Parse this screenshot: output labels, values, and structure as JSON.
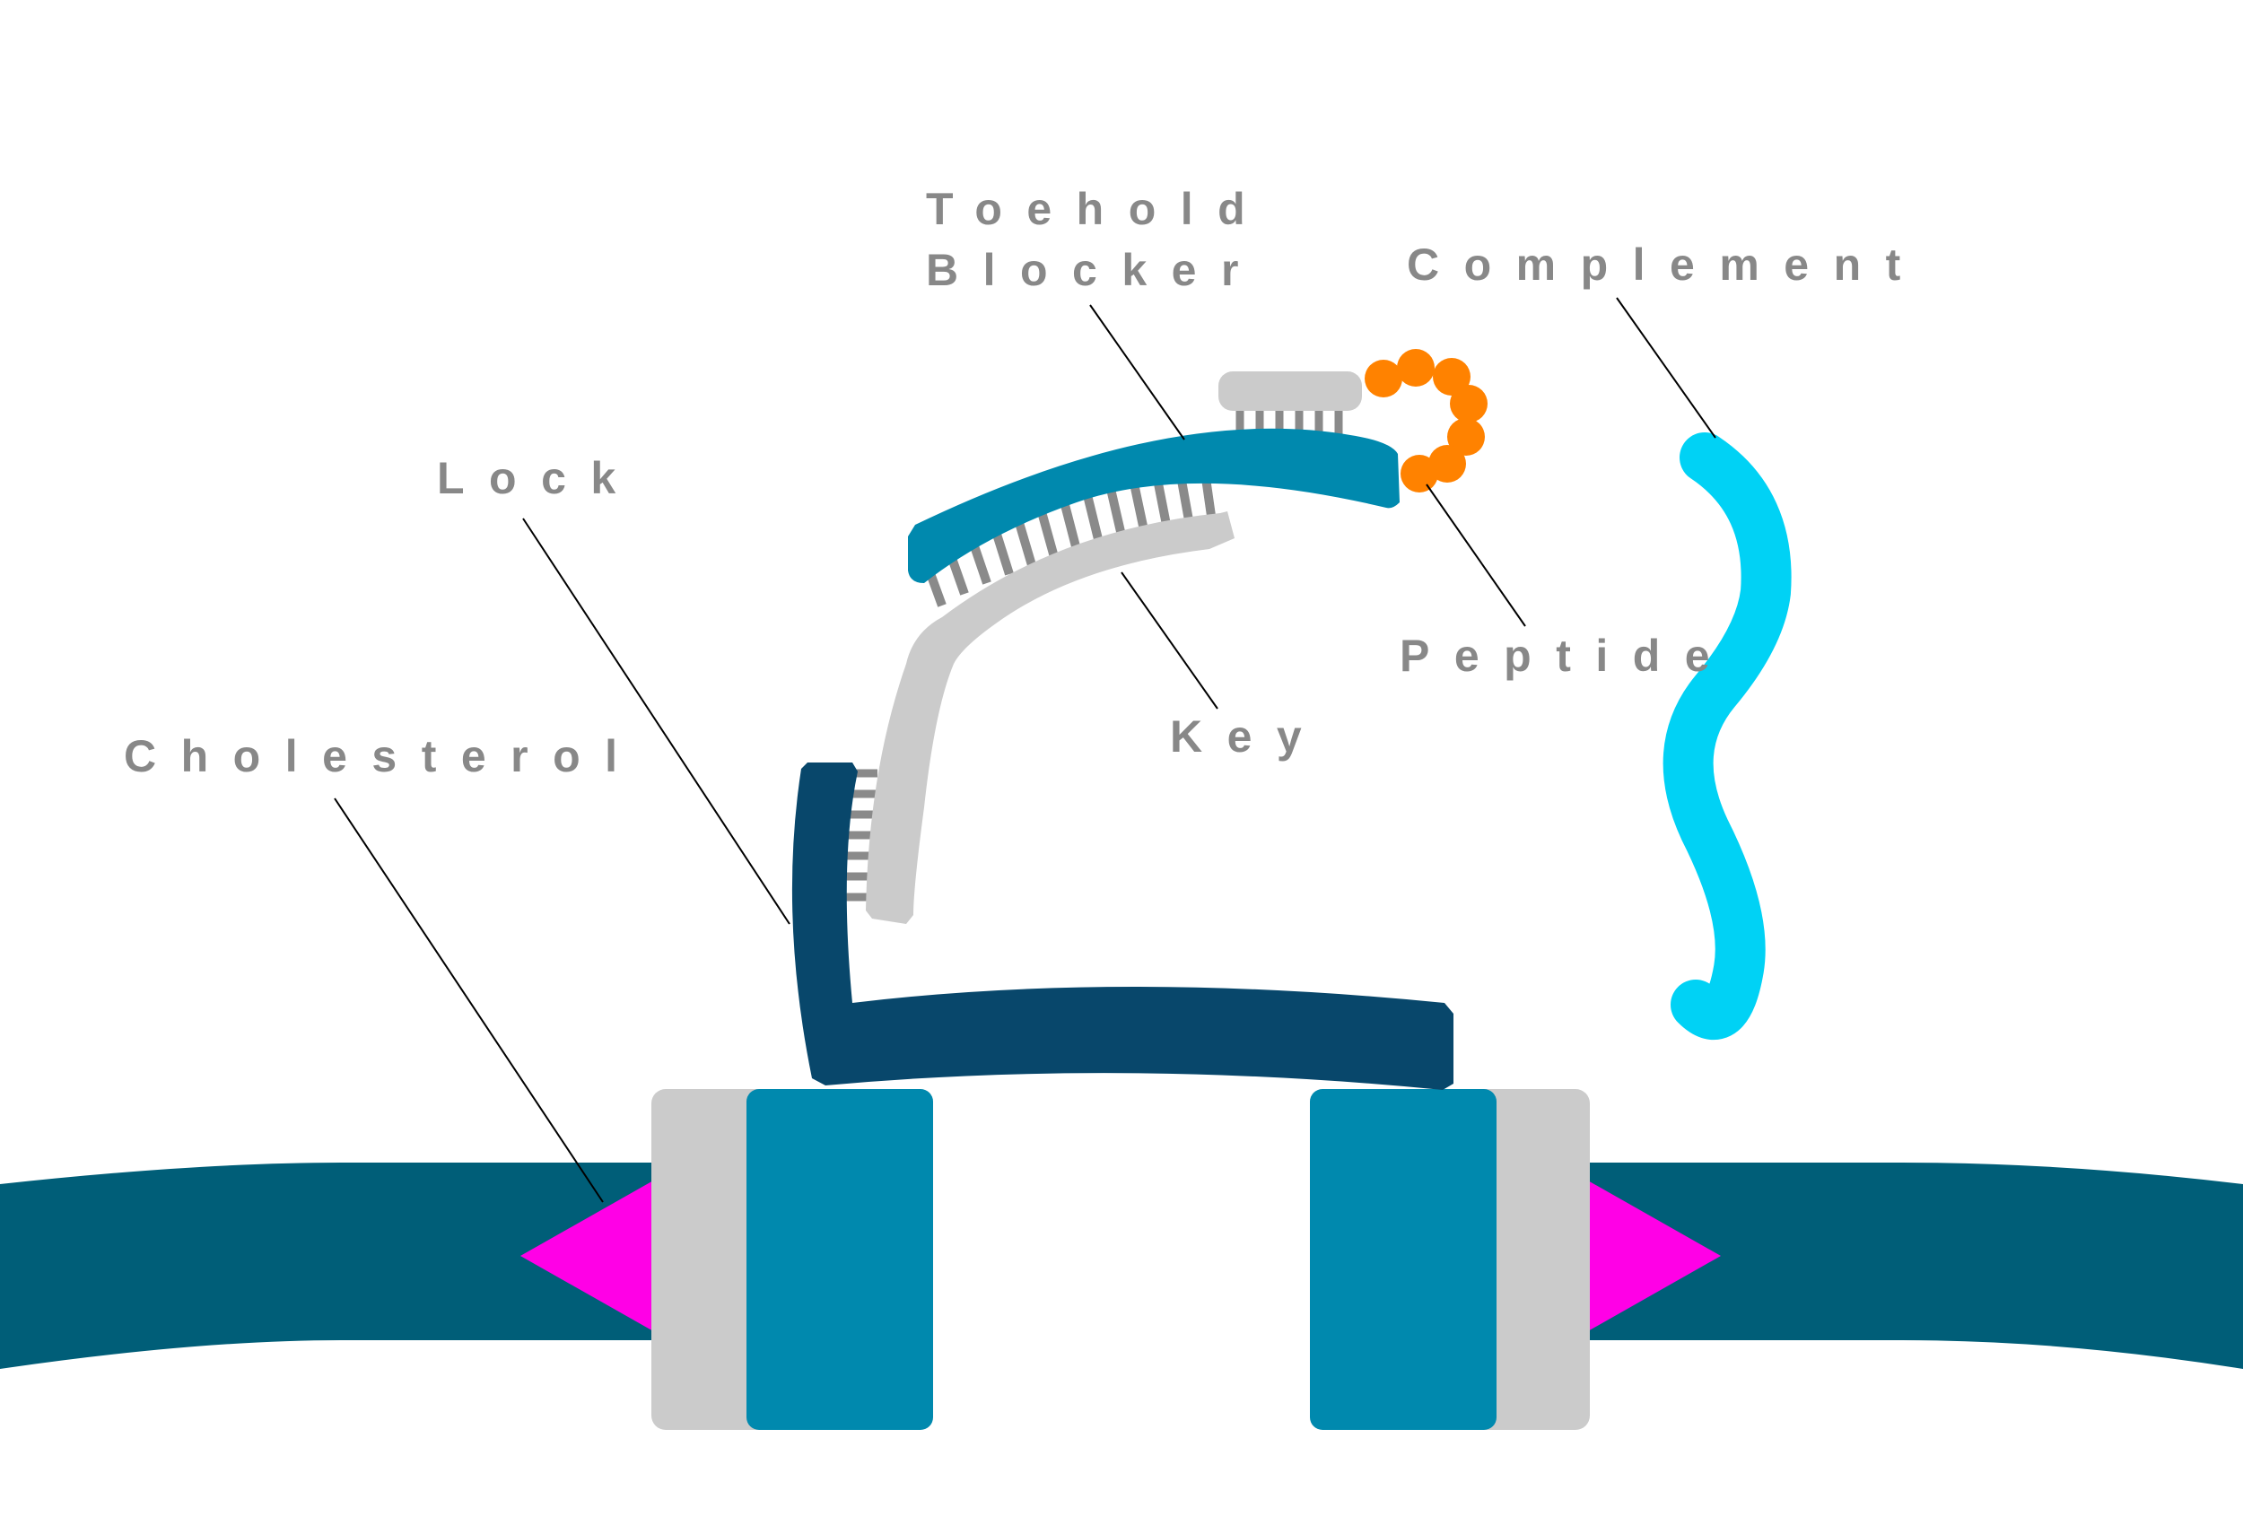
{
  "labels": {
    "toehold_blocker_line1": "Toehold",
    "toehold_blocker_line2": "Blocker",
    "complement": "Complement",
    "lock": "Lock",
    "peptide": "Peptide",
    "key": "Key",
    "cholesterol": "Cholesterol"
  },
  "colors": {
    "label_text": "#888888",
    "leader_line": "#000000",
    "membrane": "#005e78",
    "lock_strand": "#08476b",
    "channel_block": "#0089ae",
    "channel_gray": "#cbcbcb",
    "key_strand": "#cbcbcb",
    "blocker_strand": "#0089ae",
    "base_pairs": "#8a8a8a",
    "cholesterol": "#ff00e6",
    "peptide": "#ff8200",
    "complement": "#00d2f5"
  }
}
